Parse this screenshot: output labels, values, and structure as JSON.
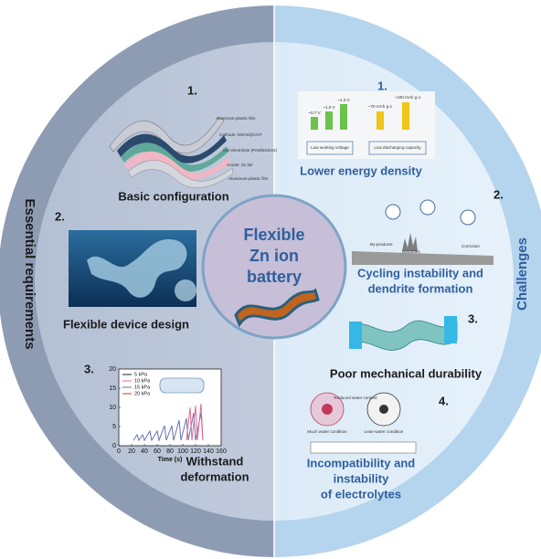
{
  "center_title": [
    "Flexible",
    "Zn ion",
    "battery"
  ],
  "ring_labels": {
    "left": "Essential requirements",
    "right": "Challenges"
  },
  "requirements": [
    {
      "number": "1.",
      "title": [
        "Basic configuration"
      ],
      "layers": [
        "Aluminum-plastic film",
        "Cathode: MnO2@CNT",
        "Gel electrolyte (PAM/ZnSO4)",
        "Anode: Zn foil",
        "Aluminum-plastic film"
      ]
    },
    {
      "number": "2.",
      "title": [
        "Flexible device design"
      ]
    },
    {
      "number": "3.",
      "title": [
        "Withstand",
        "deformation"
      ],
      "inset_chart": {
        "legend": [
          "5 kPa",
          "10 kPa",
          "15 kPa",
          "20 kPa"
        ],
        "xlabel": "Time (s)",
        "xlim": [
          0,
          160
        ],
        "xticks": [
          0,
          20,
          40,
          60,
          80,
          100,
          120,
          140,
          160
        ],
        "ylim": [
          0,
          20
        ],
        "yticks": [
          0,
          5,
          10,
          15,
          20
        ]
      }
    }
  ],
  "challenges": [
    {
      "number": "1.",
      "title": [
        "Lower energy density"
      ],
      "labels": [
        "~0.7 V",
        "~1.0 V",
        "~1.3 V",
        "~70 mAh g-1",
        "~100 mAh g-1",
        "Low working voltage",
        "Low discharging capacity"
      ]
    },
    {
      "number": "2.",
      "title": [
        "Cycling instability and",
        "dendrite formation"
      ],
      "labels": [
        "By-products",
        "Dendrites",
        "Corrosion"
      ]
    },
    {
      "number": "3.",
      "title": [
        "Poor mechanical durability"
      ]
    },
    {
      "number": "4.",
      "title": [
        "Incompatibility and",
        "instability",
        "of electrolytes"
      ],
      "labels": [
        "Much water condition",
        "Lean-water condition",
        "Reduced water content"
      ]
    }
  ]
}
